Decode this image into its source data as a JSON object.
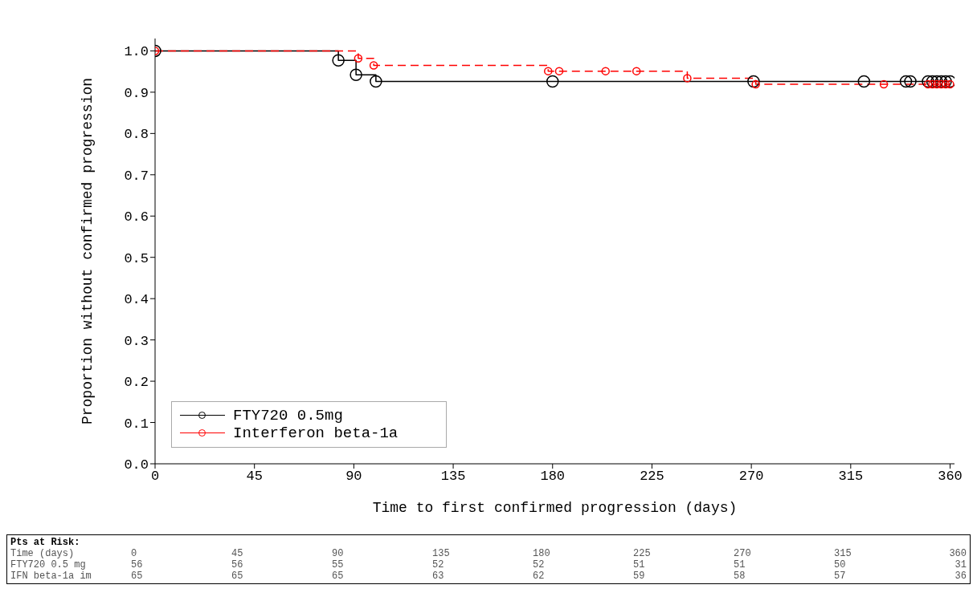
{
  "chart_data": {
    "type": "step",
    "xlabel": "Time to first confirmed progression (days)",
    "ylabel": "Proportion without confirmed progression",
    "xlim": [
      0,
      362
    ],
    "xticks": [
      0,
      45,
      90,
      135,
      180,
      225,
      270,
      315,
      360
    ],
    "ylim": [
      0,
      1.03
    ],
    "yticks": [
      {
        "value": 0,
        "label": "0.0"
      },
      {
        "value": 0.1,
        "label": "0.1"
      },
      {
        "value": 0.2,
        "label": "0.2"
      },
      {
        "value": 0.3,
        "label": "0.3"
      },
      {
        "value": 0.4,
        "label": "0.4"
      },
      {
        "value": 0.5,
        "label": "0.5"
      },
      {
        "value": 0.6,
        "label": "0.6"
      },
      {
        "value": 0.7,
        "label": "0.7"
      },
      {
        "value": 0.8,
        "label": "0.8"
      },
      {
        "value": 0.9,
        "label": "0.9"
      },
      {
        "value": 1,
        "label": "1.0"
      }
    ],
    "grid": false,
    "legend": "bottom left",
    "marker": "circle",
    "series": [
      {
        "name": "FTY720 0.5mg",
        "color": "#000000",
        "line_style": "solid",
        "x": [
          0,
          83,
          91,
          100,
          180,
          271,
          321,
          340,
          342,
          350,
          352,
          354,
          356,
          358,
          360
        ],
        "values": [
          1,
          0.977,
          0.942,
          0.926,
          0.926,
          0.926,
          0.926,
          0.926,
          0.926,
          0.926,
          0.926,
          0.926,
          0.926,
          0.926,
          0.926
        ]
      },
      {
        "name": "Interferon beta-1a",
        "color": "#ff0000",
        "line_style": "dashed",
        "x": [
          0,
          92,
          99,
          178,
          183,
          204,
          218,
          241,
          272,
          330,
          350,
          352,
          354,
          356,
          358,
          360
        ],
        "values": [
          1,
          0.982,
          0.965,
          0.951,
          0.951,
          0.951,
          0.951,
          0.934,
          0.919,
          0.919,
          0.919,
          0.919,
          0.919,
          0.919,
          0.919,
          0.919
        ]
      }
    ],
    "annotations": [
      "Pts at Risk:",
      "Time (days)",
      "0",
      "45",
      "90",
      "135",
      "180",
      "225",
      "270",
      "315",
      "360",
      "FTY720 0.5 mg",
      "56",
      "56",
      "55",
      "52",
      "52",
      "51",
      "51",
      "50",
      "31",
      "IFN beta-1a im",
      "65",
      "65",
      "65",
      "63",
      "62",
      "59",
      "58",
      "57",
      "36"
    ]
  }
}
